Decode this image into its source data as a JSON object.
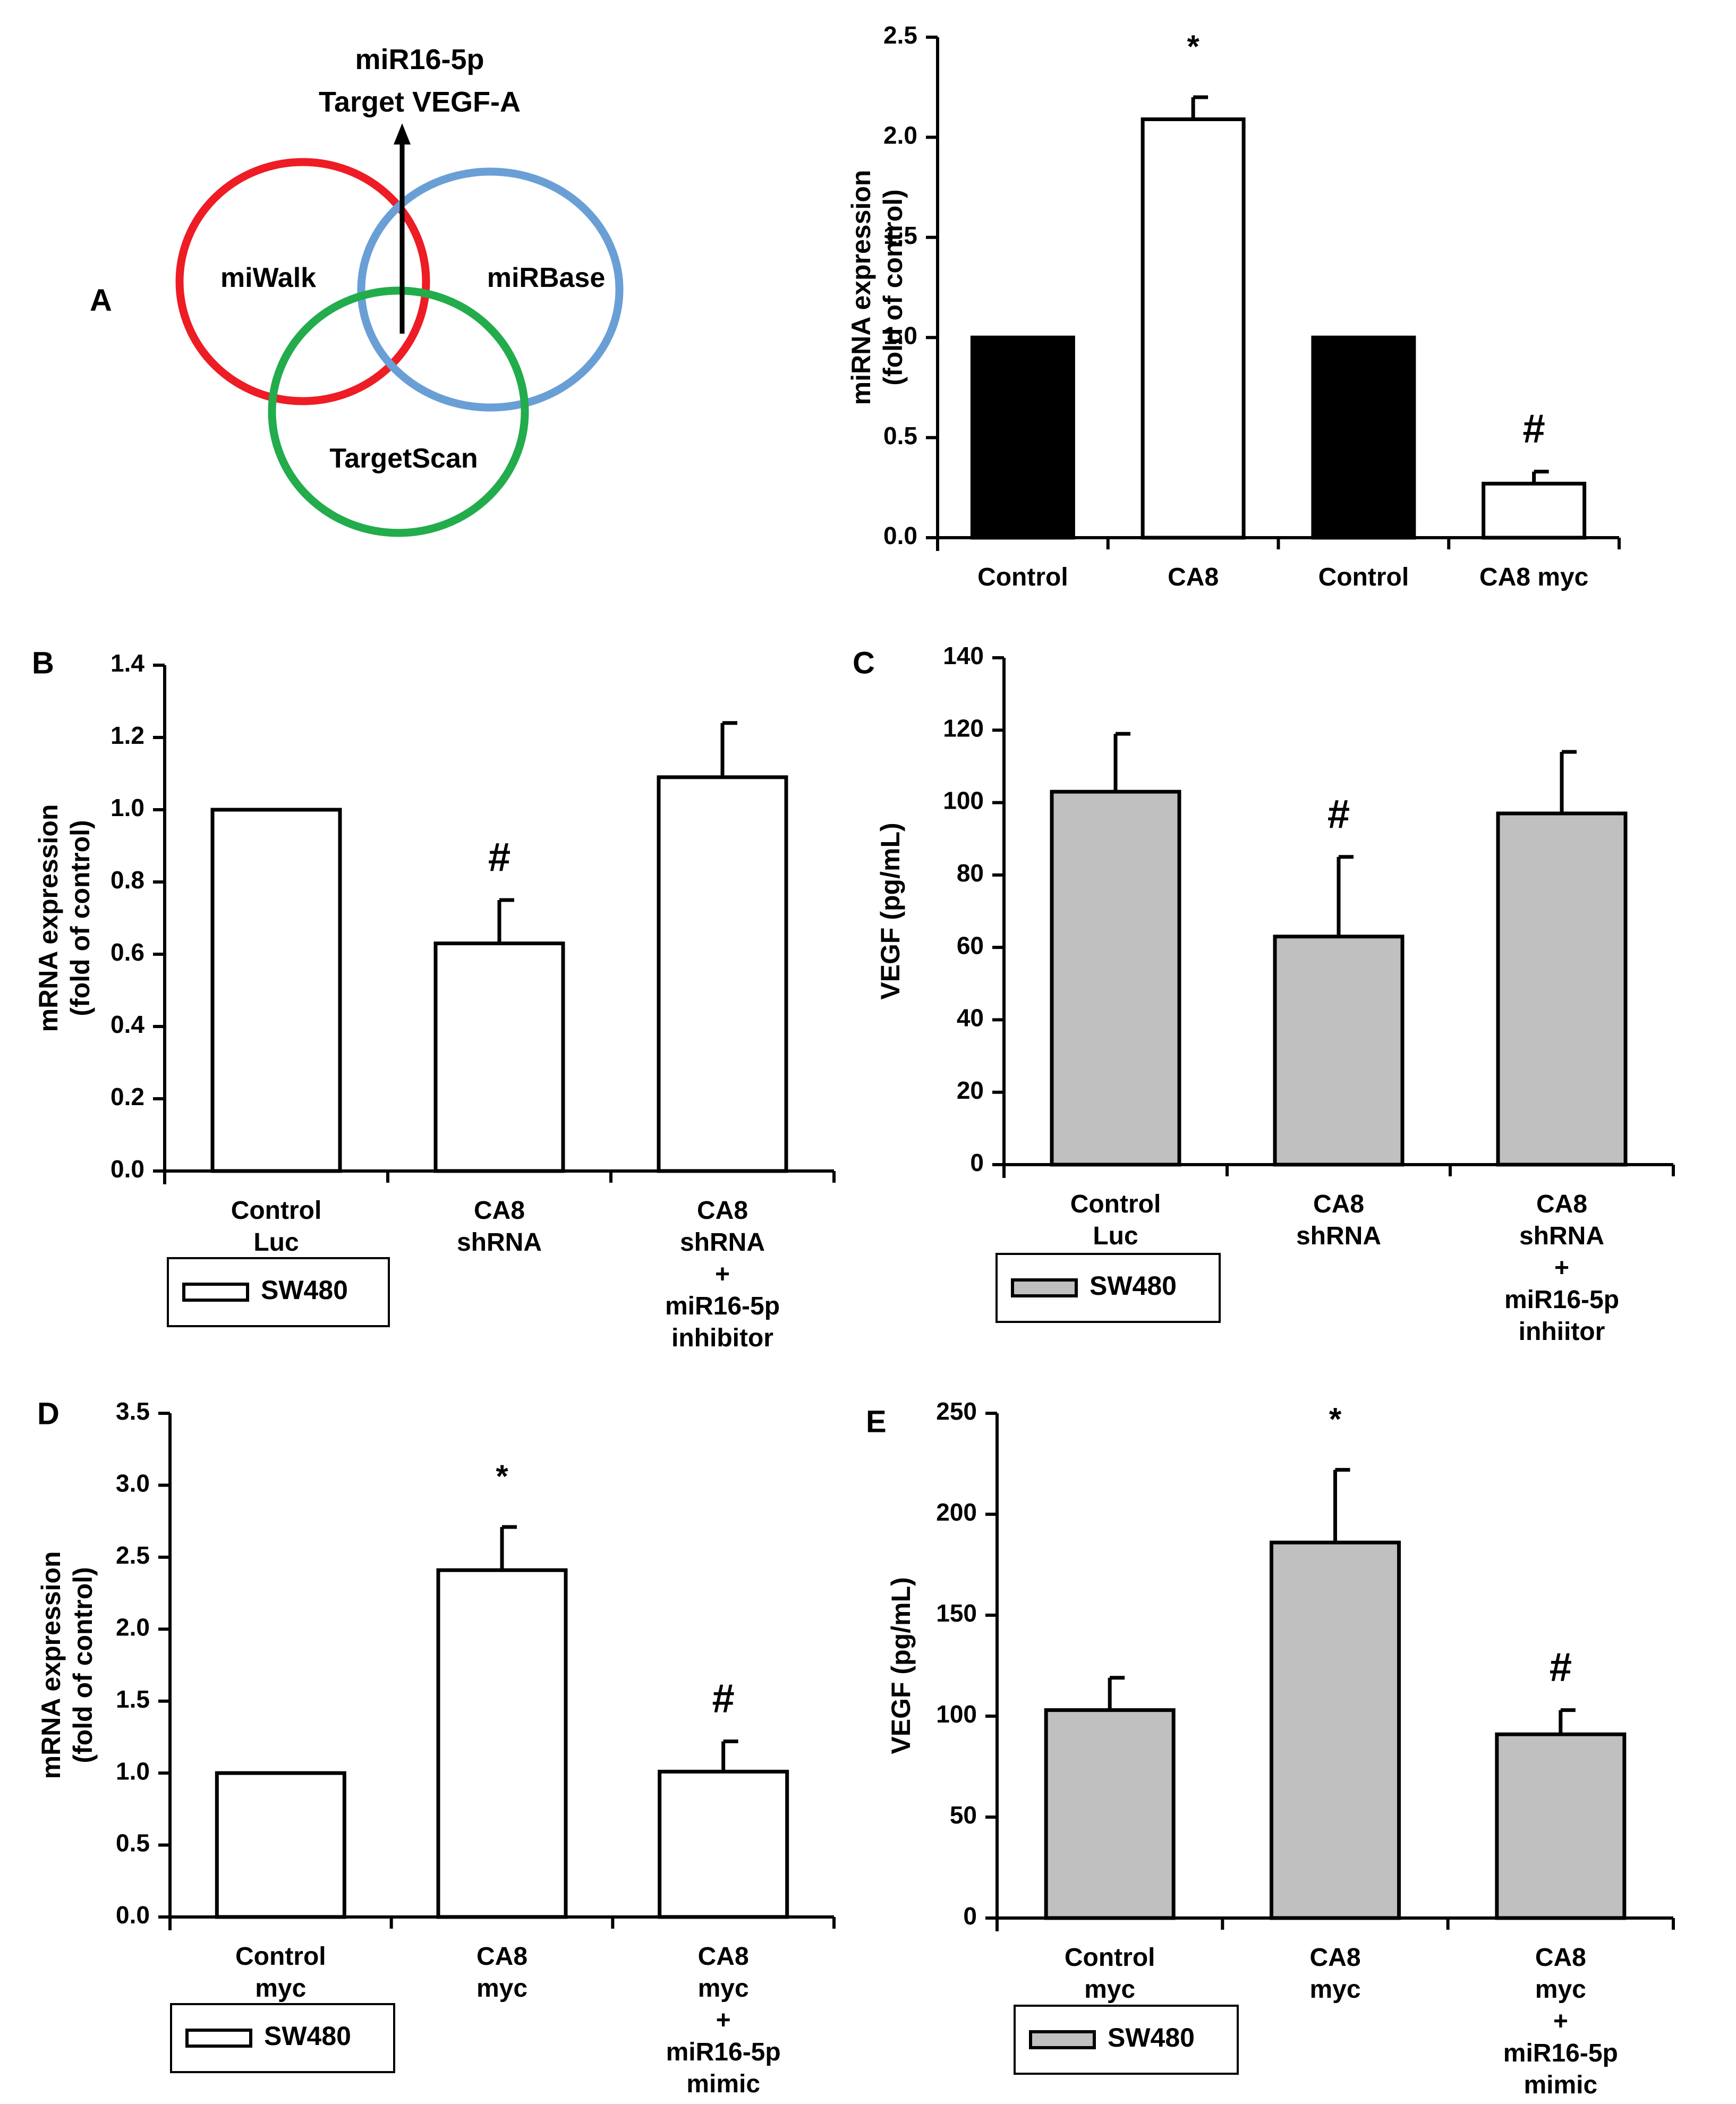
{
  "venn": {
    "label": "A",
    "title_line1": "miR16-5p",
    "title_line2": "Target VEGF-A",
    "circles": [
      {
        "name": "miWalk",
        "color": "#ee1c24"
      },
      {
        "name": "miRBase",
        "color": "#6a9fd6"
      },
      {
        "name": "TargetScan",
        "color": "#22ac4b"
      }
    ]
  },
  "chart_data": [
    {
      "id": "A-right",
      "type": "bar",
      "panel_label": "",
      "title": "",
      "ylabel_lines": [
        "miRNA expression",
        "(fold of control)"
      ],
      "ylim": [
        0,
        2.5
      ],
      "ticks": [
        0.0,
        0.5,
        1.0,
        1.5,
        2.0,
        2.5
      ],
      "tick_decimals": 1,
      "categories": [
        [
          "Control"
        ],
        [
          "CA8"
        ],
        [
          "Control"
        ],
        [
          "CA8 myc"
        ]
      ],
      "values": [
        1.0,
        2.09,
        1.0,
        0.27
      ],
      "errors": [
        0,
        0.11,
        0,
        0.06
      ],
      "fills": [
        "#000000",
        "#ffffff",
        "#000000",
        "#ffffff"
      ],
      "annotations": [
        "",
        "*",
        "",
        "#"
      ],
      "legend": null
    },
    {
      "id": "B",
      "type": "bar",
      "panel_label": "B",
      "title": "",
      "ylabel_lines": [
        "mRNA expression",
        "(fold of control)"
      ],
      "ylim": [
        0,
        1.4
      ],
      "ticks": [
        0.0,
        0.2,
        0.4,
        0.6,
        0.8,
        1.0,
        1.2,
        1.4
      ],
      "tick_decimals": 1,
      "categories": [
        [
          "Control",
          "Luc"
        ],
        [
          "CA8",
          "shRNA"
        ],
        [
          "CA8",
          "shRNA",
          "+",
          "miR16-5p",
          "inhibitor"
        ]
      ],
      "values": [
        1.0,
        0.63,
        1.09
      ],
      "errors": [
        0,
        0.12,
        0.15
      ],
      "fills": [
        "#ffffff",
        "#ffffff",
        "#ffffff"
      ],
      "annotations": [
        "",
        "#",
        ""
      ],
      "legend": {
        "label": "SW480",
        "color": "#ffffff"
      }
    },
    {
      "id": "C",
      "type": "bar",
      "panel_label": "C",
      "title": "",
      "ylabel_lines": [
        "VEGF (pg/mL)"
      ],
      "ylim": [
        0,
        140
      ],
      "ticks": [
        0,
        20,
        40,
        60,
        80,
        100,
        120,
        140
      ],
      "tick_decimals": 0,
      "categories": [
        [
          "Control",
          "Luc"
        ],
        [
          "CA8",
          "shRNA"
        ],
        [
          "CA8",
          "shRNA",
          "+",
          "miR16-5p",
          "inhiitor"
        ]
      ],
      "values": [
        103,
        63,
        97
      ],
      "errors": [
        16,
        22,
        17
      ],
      "fills": [
        "#c0c0c0",
        "#c0c0c0",
        "#c0c0c0"
      ],
      "annotations": [
        "",
        "#",
        ""
      ],
      "legend": {
        "label": "SW480",
        "color": "#c0c0c0"
      }
    },
    {
      "id": "D",
      "type": "bar",
      "panel_label": "D",
      "title": "",
      "ylabel_lines": [
        "mRNA expression",
        "(fold of control)"
      ],
      "ylim": [
        0,
        3.5
      ],
      "ticks": [
        0.0,
        0.5,
        1.0,
        1.5,
        2.0,
        2.5,
        3.0,
        3.5
      ],
      "tick_decimals": 1,
      "categories": [
        [
          "Control",
          "myc"
        ],
        [
          "CA8",
          "myc"
        ],
        [
          "CA8",
          "myc",
          "+",
          "miR16-5p",
          "mimic"
        ]
      ],
      "values": [
        1.0,
        2.41,
        1.01
      ],
      "errors": [
        0,
        0.3,
        0.21
      ],
      "fills": [
        "#ffffff",
        "#ffffff",
        "#ffffff"
      ],
      "annotations": [
        "",
        "*",
        "#"
      ],
      "legend": {
        "label": "SW480",
        "color": "#ffffff"
      }
    },
    {
      "id": "E",
      "type": "bar",
      "panel_label": "E",
      "title": "",
      "ylabel_lines": [
        "VEGF (pg/mL)"
      ],
      "ylim": [
        0,
        250
      ],
      "ticks": [
        0,
        50,
        100,
        150,
        200,
        250
      ],
      "tick_decimals": 0,
      "categories": [
        [
          "Control",
          "myc"
        ],
        [
          "CA8",
          "myc"
        ],
        [
          "CA8",
          "myc",
          "+",
          "miR16-5p",
          "mimic"
        ]
      ],
      "values": [
        103,
        186,
        91
      ],
      "errors": [
        16,
        36,
        12
      ],
      "fills": [
        "#c0c0c0",
        "#c0c0c0",
        "#c0c0c0"
      ],
      "annotations": [
        "",
        "*",
        "#"
      ],
      "legend": {
        "label": "SW480",
        "color": "#c0c0c0"
      }
    }
  ]
}
